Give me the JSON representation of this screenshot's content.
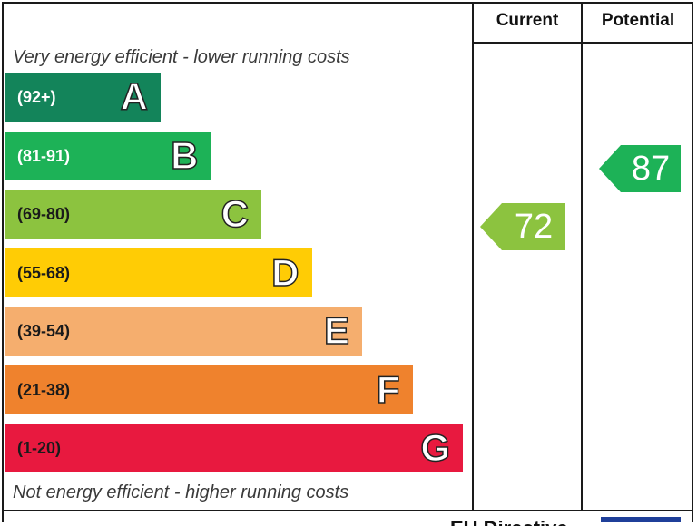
{
  "headers": {
    "current": "Current",
    "potential": "Potential"
  },
  "captions": {
    "top": "Very energy efficient - lower running costs",
    "bottom": "Not energy efficient - higher running costs"
  },
  "footer_text": "EU Directive",
  "chart_data": {
    "type": "bar",
    "categories": [
      "A",
      "B",
      "C",
      "D",
      "E",
      "F",
      "G"
    ],
    "ranges": [
      "(92+)",
      "(81-91)",
      "(69-80)",
      "(55-68)",
      "(39-54)",
      "(21-38)",
      "(1-20)"
    ],
    "colors": [
      "#13845a",
      "#1db257",
      "#8cc33f",
      "#ffcc05",
      "#f5ae6e",
      "#ef822d",
      "#e8193f"
    ],
    "range_text_colors": [
      "#ffffff",
      "#ffffff",
      "#1a1a1a",
      "#1a1a1a",
      "#1a1a1a",
      "#1a1a1a",
      "#1a1a1a"
    ],
    "current": {
      "value": 72,
      "label": "72",
      "band": "C",
      "color": "#8cc33f"
    },
    "potential": {
      "value": 87,
      "label": "87",
      "band": "B",
      "color": "#1db257"
    }
  }
}
